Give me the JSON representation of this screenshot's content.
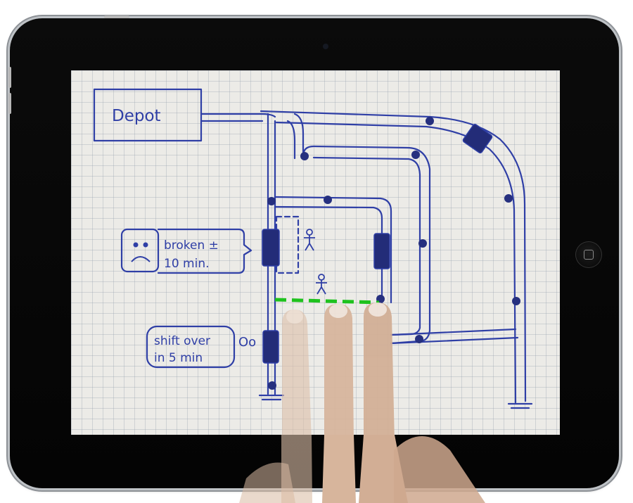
{
  "colors": {
    "ink": "#2f3fa6",
    "ink_fill": "#26307f",
    "paper": "#ecebe7",
    "grid": "#b6bdc8",
    "highlight": "#1ec21e",
    "bezel": "#050505",
    "skin": "#d7b59c"
  },
  "sketch": {
    "depot_label": "Depot",
    "broken_label_line1": "broken ±",
    "broken_label_line2": "10 min.",
    "shift_label_line1": "shift over",
    "shift_label_line2": "in 5 min",
    "shift_face": "Oo",
    "sad_face_icon": "sad-face-icon",
    "person_icon": "stick-figure-icon"
  },
  "device": {
    "home_button_icon": "home-square-icon"
  }
}
